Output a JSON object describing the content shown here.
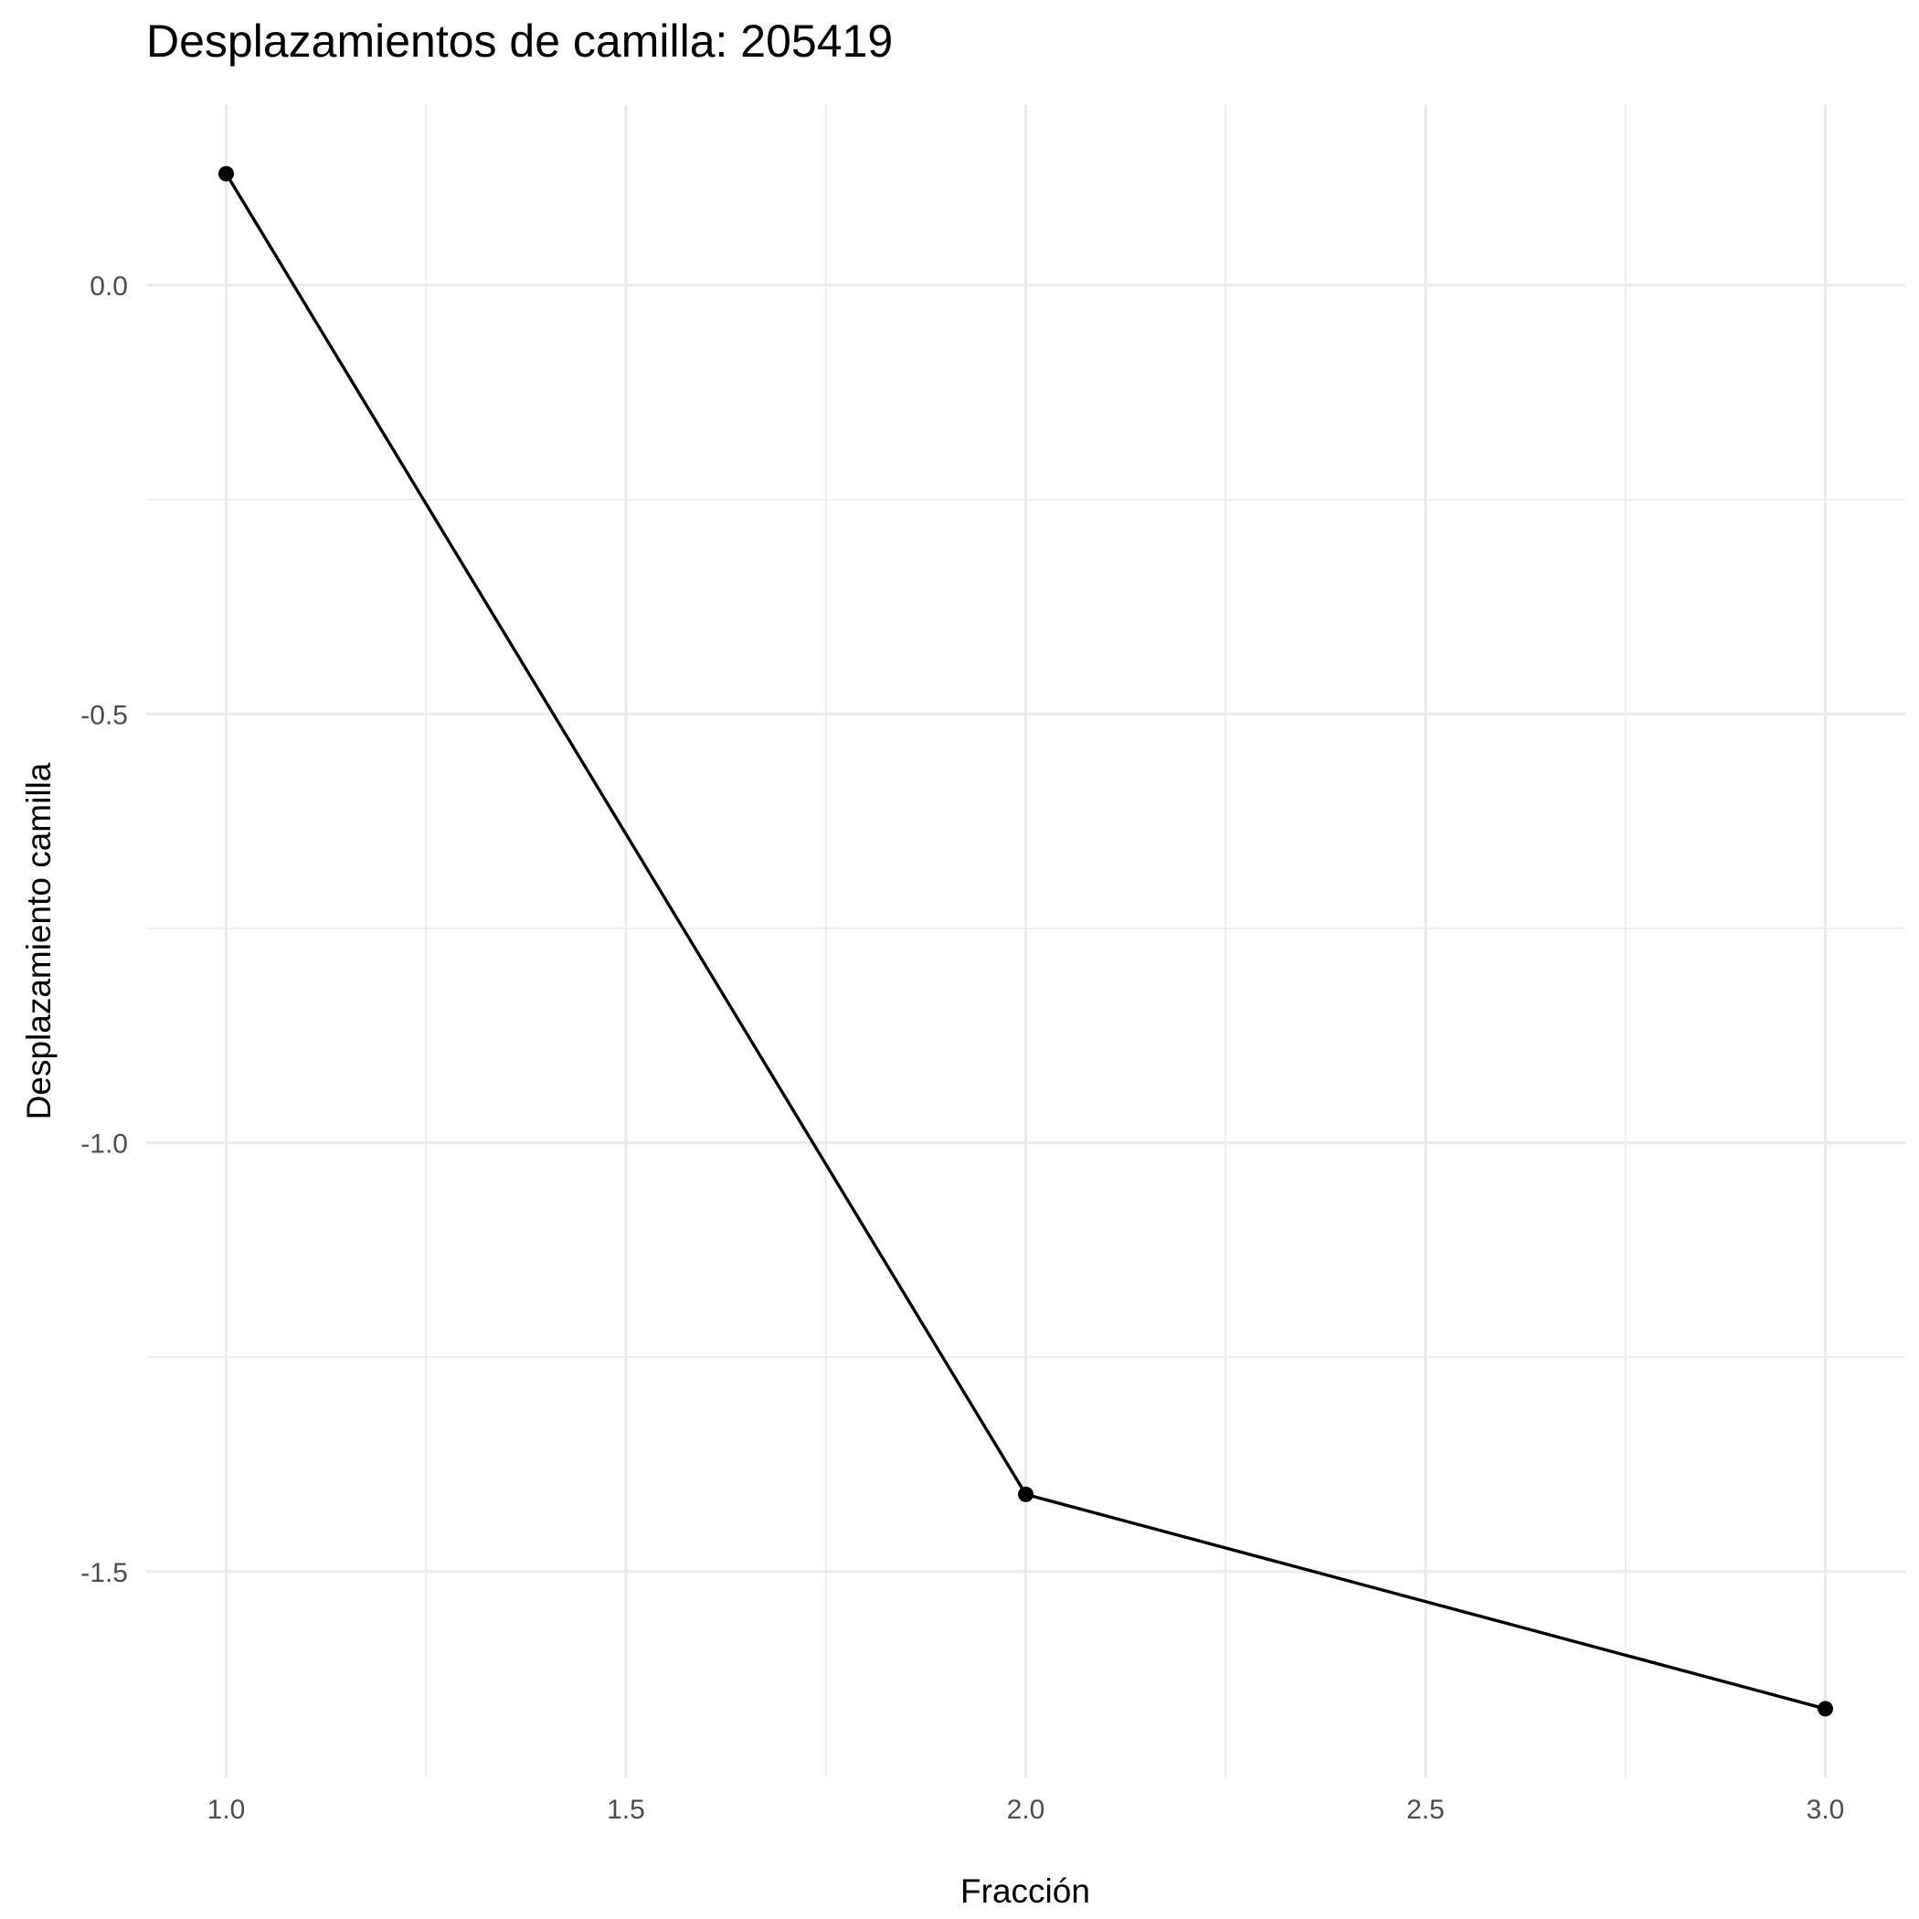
{
  "chart_data": {
    "type": "line",
    "title": "Desplazamientos de camilla: 205419",
    "xlabel": "Fracción",
    "ylabel": "Desplazamiento camilla",
    "x": [
      1,
      2,
      3
    ],
    "y": [
      0.13,
      -1.41,
      -1.66
    ],
    "xlim": [
      0.9,
      3.1
    ],
    "ylim": [
      -1.74,
      0.21
    ],
    "x_ticks": [
      1.0,
      1.5,
      2.0,
      2.5,
      3.0
    ],
    "x_tick_labels": [
      "1.0",
      "1.5",
      "2.0",
      "2.5",
      "3.0"
    ],
    "y_ticks": [
      0.0,
      -0.5,
      -1.0,
      -1.5
    ],
    "y_tick_labels": [
      "0.0",
      "-0.5",
      "-1.0",
      "-1.5"
    ],
    "grid": true,
    "line_color": "#000000",
    "grid_color": "#ebebeb",
    "background": "#ffffff"
  }
}
